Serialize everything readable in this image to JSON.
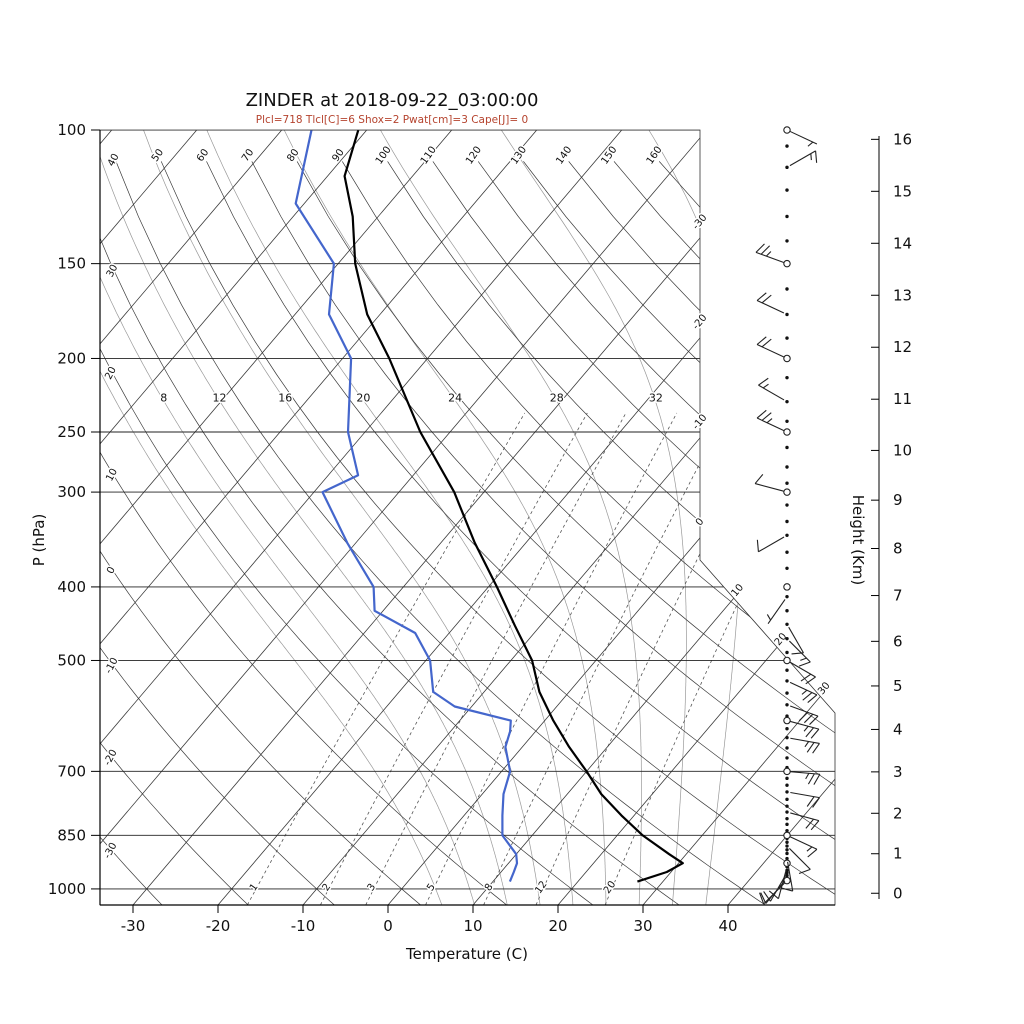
{
  "title": "ZINDER at 2018-09-22_03:00:00",
  "subtitle": "Plcl=718 Tlcl[C]=6 Shox=2 Pwat[cm]=3 Cape[J]= 0",
  "axes": {
    "pressure_label": "P (hPa)",
    "temperature_label": "Temperature (C)",
    "height_label": "Height (Km)",
    "pressure_ticks": [
      100,
      150,
      200,
      250,
      300,
      400,
      500,
      700,
      850,
      1000
    ],
    "temperature_ticks": [
      -30,
      -20,
      -10,
      0,
      10,
      20,
      30,
      40
    ],
    "height_ticks_km": [
      0,
      1,
      2,
      3,
      4,
      5,
      6,
      7,
      8,
      9,
      10,
      11,
      12,
      13,
      14,
      15,
      16
    ]
  },
  "grid_labels": {
    "dry_adiabats_top": [
      "50",
      "60",
      "70",
      "80",
      "90",
      "100",
      "110",
      "120",
      "130",
      "140",
      "150",
      "160"
    ],
    "dry_adiabats_left": [
      "40",
      "30",
      "20",
      "10",
      "0",
      "-10",
      "-20",
      "-30"
    ],
    "isotherms_right": [
      "-30",
      "-20",
      "-10",
      "0"
    ],
    "isotherms_diagonal": [
      "10",
      "20",
      "30"
    ],
    "moist_adiabats": [
      "8",
      "12",
      "16",
      "20",
      "24",
      "28",
      "32"
    ],
    "mixing_ratio": [
      "1",
      "2",
      "3",
      "5",
      "8",
      "12",
      "20"
    ]
  },
  "grid_config": {
    "isotherm_min": -120,
    "isotherm_max": 40,
    "isotherm_step": 10,
    "dry_adiabat_min": -30,
    "dry_adiabat_max": 160,
    "dry_adiabat_step": 10,
    "moist_adiabat_values": [
      4,
      8,
      12,
      16,
      20,
      24,
      28,
      32,
      36
    ],
    "mixing_ratio_values": [
      1,
      2,
      3,
      5,
      8,
      12,
      20
    ]
  },
  "colors": {
    "temperature_trace": "#000000",
    "dewpoint_trace": "#4466cc",
    "isobar": "#222222",
    "isotherm": "#3a3a3a",
    "dry_adiabat": "#3a3a3a",
    "moist_adiabat": "#999999",
    "mixing_ratio": "#555555",
    "subtitle": "#b5432e",
    "barb": "#222222",
    "border": "#333333"
  },
  "chart_data": {
    "type": "skewt_log_p",
    "station": "ZINDER",
    "valid_time": "2018-09-22_03:00:00",
    "indices": {
      "Plcl": 718,
      "Tlcl_C": 6,
      "Shox": 2,
      "Pwat_cm": 3,
      "Cape_J": 0
    },
    "pressure_range_hPa": [
      100,
      1050
    ],
    "temperature_axis_range_C": [
      -35,
      45
    ],
    "temperature_profile": {
      "pressure_hPa": [
        978,
        950,
        925,
        900,
        850,
        800,
        750,
        700,
        650,
        600,
        550,
        500,
        450,
        400,
        350,
        300,
        250,
        200,
        175,
        150,
        130,
        115,
        100
      ],
      "temp_C": [
        27,
        29.5,
        30.5,
        28,
        23,
        18.5,
        14,
        10,
        5.5,
        1,
        -3.5,
        -7.5,
        -13,
        -19,
        -26,
        -33.5,
        -43.5,
        -54.5,
        -61.5,
        -68,
        -73,
        -78,
        -81
      ]
    },
    "dewpoint_profile": {
      "pressure_hPa": [
        978,
        950,
        925,
        900,
        850,
        800,
        750,
        700,
        650,
        620,
        600,
        575,
        550,
        500,
        460,
        430,
        400,
        350,
        300,
        285,
        250,
        200,
        175,
        150,
        125,
        100
      ],
      "dewpoint_C": [
        12,
        11.5,
        11,
        10,
        6.5,
        4.5,
        2.5,
        1,
        -2,
        -3,
        -4,
        -12,
        -16,
        -19.5,
        -24,
        -31,
        -33.5,
        -41,
        -49,
        -46.5,
        -52,
        -59,
        -66,
        -70.5,
        -81,
        -86.5
      ]
    },
    "winds": [
      {
        "p": 100,
        "dir": 115,
        "spd": 5
      },
      {
        "p": 112,
        "dir": 60,
        "spd": 15
      },
      {
        "p": 150,
        "dir": 290,
        "spd": 25
      },
      {
        "p": 175,
        "dir": 295,
        "spd": 20
      },
      {
        "p": 200,
        "dir": 295,
        "spd": 20
      },
      {
        "p": 228,
        "dir": 300,
        "spd": 15
      },
      {
        "p": 250,
        "dir": 295,
        "spd": 25
      },
      {
        "p": 300,
        "dir": 285,
        "spd": 10
      },
      {
        "p": 342,
        "dir": 240,
        "spd": 10
      },
      {
        "p": 412,
        "dir": 215,
        "spd": 5
      },
      {
        "p": 448,
        "dir": 150,
        "spd": 10
      },
      {
        "p": 468,
        "dir": 135,
        "spd": 15
      },
      {
        "p": 500,
        "dir": 120,
        "spd": 20
      },
      {
        "p": 532,
        "dir": 115,
        "spd": 25
      },
      {
        "p": 572,
        "dir": 110,
        "spd": 30
      },
      {
        "p": 600,
        "dir": 105,
        "spd": 25
      },
      {
        "p": 632,
        "dir": 100,
        "spd": 25
      },
      {
        "p": 700,
        "dir": 95,
        "spd": 25
      },
      {
        "p": 745,
        "dir": 100,
        "spd": 20
      },
      {
        "p": 792,
        "dir": 105,
        "spd": 20
      },
      {
        "p": 850,
        "dir": 115,
        "spd": 15
      },
      {
        "p": 878,
        "dir": 135,
        "spd": 10
      },
      {
        "p": 912,
        "dir": 170,
        "spd": 10
      },
      {
        "p": 935,
        "dir": 195,
        "spd": 10
      },
      {
        "p": 952,
        "dir": 210,
        "spd": 10
      },
      {
        "p": 968,
        "dir": 220,
        "spd": 10
      },
      {
        "p": 975,
        "dir": 225,
        "spd": 10
      }
    ],
    "station_circles_hPa": [
      100,
      150,
      200,
      250,
      300,
      400,
      500,
      600,
      700,
      850,
      925,
      975
    ],
    "level_dots_hPa": [
      105,
      112,
      120,
      130,
      140,
      162,
      175,
      188,
      212,
      228,
      242,
      262,
      278,
      292,
      312,
      328,
      342,
      360,
      378,
      412,
      430,
      448,
      468,
      488,
      515,
      532,
      552,
      572,
      592,
      615,
      632,
      652,
      672,
      692,
      715,
      730,
      745,
      762,
      778,
      792,
      808,
      822,
      838,
      858,
      868,
      878,
      888,
      898,
      912,
      920,
      935,
      945,
      952,
      960,
      968
    ]
  }
}
